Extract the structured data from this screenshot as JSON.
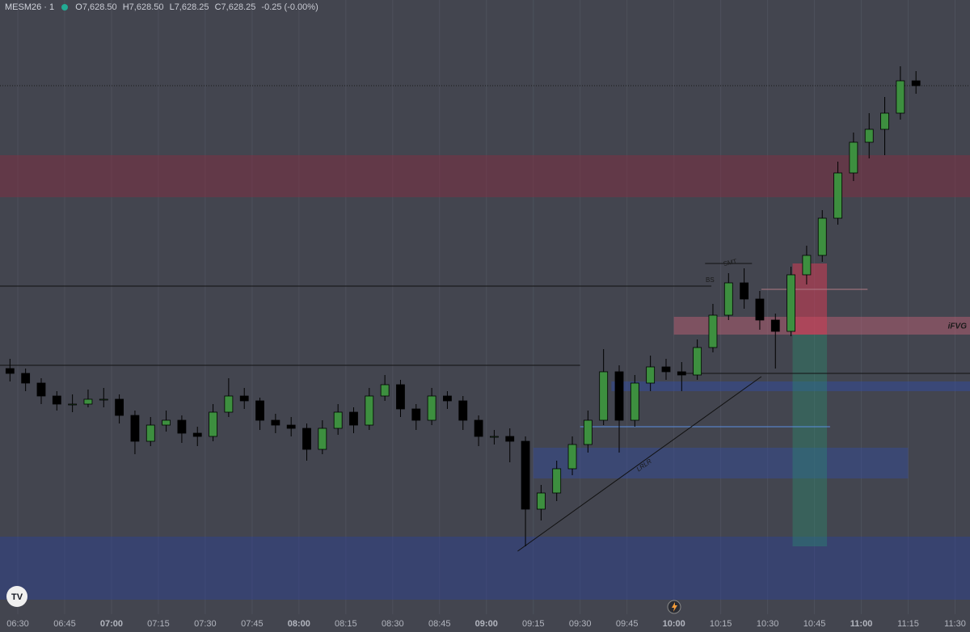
{
  "chart_data": {
    "type": "candlestick",
    "symbol": "MESM26 · 1",
    "ohlc_header": {
      "o_label": "O",
      "o": "7,628.50",
      "h_label": "H",
      "h": "7,628.50",
      "l_label": "L",
      "l": "7,628.25",
      "c_label": "C",
      "c": "7,628.25",
      "change": "-0.25 (-0.00%)"
    },
    "ylim": [
      7546.5,
      7641.5
    ],
    "xticks": [
      "06:30",
      "06:45",
      "07:00",
      "07:15",
      "07:30",
      "07:45",
      "08:00",
      "08:15",
      "08:30",
      "08:45",
      "09:00",
      "09:15",
      "09:30",
      "09:45",
      "10:00",
      "10:15",
      "10:30",
      "10:45",
      "11:00",
      "11:15",
      "11:30"
    ],
    "grid": true,
    "up_color": "#3d8f3f",
    "down_color": "#000000",
    "candles": {
      "x": [
        "06:25",
        "06:30",
        "06:35",
        "06:40",
        "06:45",
        "06:50",
        "06:55",
        "07:00",
        "07:05",
        "07:10",
        "07:15",
        "07:20",
        "07:25",
        "07:30",
        "07:35",
        "07:40",
        "07:45",
        "07:50",
        "07:55",
        "08:00",
        "08:05",
        "08:10",
        "08:15",
        "08:20",
        "08:25",
        "08:30",
        "08:35",
        "08:40",
        "08:45",
        "08:50",
        "08:55",
        "09:00",
        "09:05",
        "09:10",
        "09:15",
        "09:20",
        "09:25",
        "09:30",
        "09:35",
        "09:40",
        "09:45",
        "09:50",
        "09:55",
        "10:00",
        "10:05",
        "10:10",
        "10:15",
        "10:20",
        "10:25",
        "10:30",
        "10:35",
        "10:40",
        "10:45",
        "10:50",
        "10:55",
        "11:00",
        "11:05",
        "11:10",
        "11:15"
      ],
      "open": [
        7584.5,
        7583.75,
        7582.25,
        7580.25,
        7579.0,
        7579.0,
        7579.75,
        7579.75,
        7577.25,
        7573.25,
        7575.75,
        7576.5,
        7574.5,
        7574.0,
        7577.75,
        7580.25,
        7579.5,
        7576.5,
        7575.75,
        7575.25,
        7572.0,
        7575.25,
        7577.75,
        7575.75,
        7580.25,
        7582.0,
        7578.25,
        7576.5,
        7580.25,
        7579.5,
        7576.5,
        7574.0,
        7574.0,
        7573.25,
        7562.75,
        7565.25,
        7569.0,
        7572.75,
        7576.5,
        7584.0,
        7576.5,
        7582.25,
        7584.75,
        7584.0,
        7583.5,
        7587.75,
        7592.75,
        7597.75,
        7595.25,
        7592.0,
        7590.25,
        7599.0,
        7602.0,
        7607.75,
        7614.75,
        7619.5,
        7621.5,
        7624.0,
        7629.0
      ],
      "high": [
        7586.0,
        7584.5,
        7583.0,
        7581.0,
        7580.5,
        7581.25,
        7581.5,
        7580.5,
        7578.0,
        7577.0,
        7578.0,
        7577.25,
        7575.5,
        7579.0,
        7583.0,
        7581.5,
        7580.0,
        7577.5,
        7577.0,
        7576.0,
        7576.5,
        7579.0,
        7578.5,
        7581.5,
        7583.5,
        7582.75,
        7579.0,
        7581.5,
        7581.0,
        7580.25,
        7577.25,
        7575.0,
        7575.25,
        7574.0,
        7566.5,
        7570.25,
        7574.0,
        7578.0,
        7587.5,
        7585.0,
        7583.5,
        7586.5,
        7586.0,
        7585.5,
        7589.0,
        7594.5,
        7599.25,
        7600.0,
        7596.5,
        7593.0,
        7600.25,
        7603.5,
        7609.0,
        7616.5,
        7621.0,
        7624.0,
        7626.5,
        7631.25,
        7630.5
      ],
      "low": [
        7582.5,
        7581.0,
        7579.0,
        7578.0,
        7577.75,
        7578.5,
        7578.5,
        7576.0,
        7571.25,
        7572.5,
        7574.75,
        7573.0,
        7572.5,
        7573.25,
        7577.0,
        7578.25,
        7575.0,
        7574.5,
        7574.0,
        7570.25,
        7571.25,
        7574.25,
        7574.5,
        7575.0,
        7579.5,
        7577.0,
        7575.0,
        7575.75,
        7578.25,
        7575.0,
        7572.5,
        7572.75,
        7570.0,
        7557.0,
        7561.0,
        7564.0,
        7568.0,
        7571.5,
        7575.75,
        7571.5,
        7575.5,
        7581.0,
        7582.75,
        7581.0,
        7582.75,
        7587.0,
        7592.0,
        7593.75,
        7590.5,
        7584.5,
        7589.5,
        7597.5,
        7601.0,
        7606.75,
        7613.5,
        7617.0,
        7617.5,
        7623.0,
        7627.0
      ],
      "close": [
        7583.75,
        7582.25,
        7580.25,
        7579.0,
        7579.0,
        7579.75,
        7579.75,
        7577.25,
        7573.25,
        7575.75,
        7576.5,
        7574.5,
        7574.0,
        7577.75,
        7580.25,
        7579.5,
        7576.5,
        7575.75,
        7575.25,
        7572.0,
        7575.25,
        7577.75,
        7575.75,
        7580.25,
        7582.0,
        7578.25,
        7576.5,
        7580.25,
        7579.5,
        7576.5,
        7574.0,
        7574.0,
        7573.25,
        7562.75,
        7565.25,
        7569.0,
        7572.75,
        7576.5,
        7584.0,
        7576.5,
        7582.25,
        7584.75,
        7584.0,
        7583.5,
        7587.75,
        7592.75,
        7597.75,
        7595.25,
        7592.0,
        7590.25,
        7599.0,
        7602.0,
        7607.75,
        7614.75,
        7619.5,
        7621.5,
        7624.0,
        7629.0,
        7628.25
      ]
    },
    "zones": [
      {
        "time": [
          "06:24",
          "11:35"
        ],
        "price": [
          7611.0,
          7617.5
        ],
        "color": "rgba(130,45,65,0.5)"
      },
      {
        "time": [
          "06:24",
          "11:35"
        ],
        "price": [
          7548.75,
          7558.5
        ],
        "color": "rgba(45,65,150,0.45)"
      },
      {
        "time": [
          "10:00",
          "11:35"
        ],
        "price": [
          7589.75,
          7592.5
        ],
        "color": "rgba(185,95,115,0.5)"
      },
      {
        "time": [
          "09:40",
          "11:35"
        ],
        "price": [
          7581.0,
          7582.5
        ],
        "color": "rgba(50,75,160,0.5)"
      },
      {
        "time": [
          "09:15",
          "11:15"
        ],
        "price": [
          7567.5,
          7572.25
        ],
        "color": "rgba(50,75,160,0.45)"
      },
      {
        "time": [
          "10:38",
          "10:49"
        ],
        "price": [
          7589.75,
          7600.75
        ],
        "color": "rgba(210,60,85,0.55)"
      },
      {
        "time": [
          "10:38",
          "10:49"
        ],
        "price": [
          7557.0,
          7589.75
        ],
        "color": "rgba(40,150,115,0.35)"
      }
    ],
    "lines": [
      {
        "time": [
          "06:24",
          "10:12"
        ],
        "price": [
          7597.25,
          7597.25
        ],
        "color": "#111111"
      },
      {
        "time": [
          "06:24",
          "09:30"
        ],
        "price": [
          7585.0,
          7585.0
        ],
        "color": "#111111"
      },
      {
        "time": [
          "10:02",
          "11:35"
        ],
        "price": [
          7583.75,
          7583.75
        ],
        "color": "#111111"
      },
      {
        "time": [
          "09:30",
          "10:50"
        ],
        "price": [
          7575.5,
          7575.5
        ],
        "color": "#5b8fe0"
      },
      {
        "time": [
          "10:28",
          "11:02"
        ],
        "price": [
          7596.75,
          7596.75
        ],
        "color": "#b07a86"
      },
      {
        "time": [
          "10:10",
          "10:25"
        ],
        "price": [
          7600.75,
          7600.75
        ],
        "color": "#111111"
      },
      {
        "time": [
          "09:10",
          "10:28"
        ],
        "price": [
          7556.25,
          7583.25
        ],
        "color": "#111111"
      }
    ],
    "labels": {
      "smt": "SMT",
      "bsl": "BS",
      "ifvg": "iFVG",
      "lrlr": "LRLR"
    }
  }
}
